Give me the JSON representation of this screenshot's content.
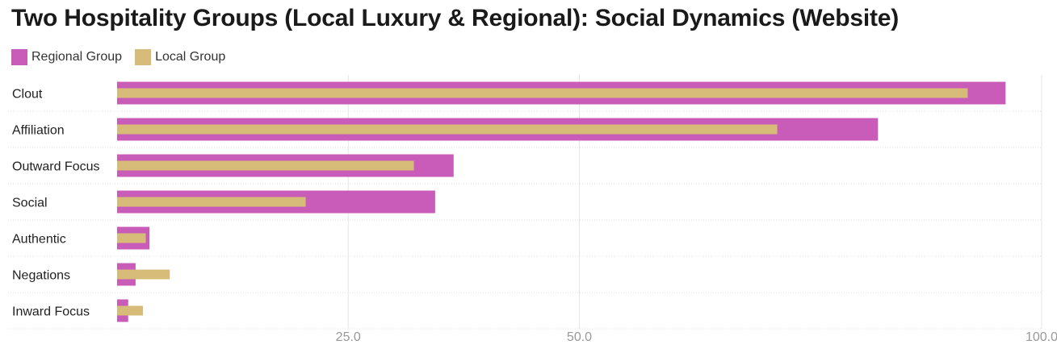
{
  "chart_data": {
    "type": "bar",
    "orientation": "horizontal",
    "title": "Two Hospitality Groups (Local Luxury & Regional): Social Dynamics (Website)",
    "categories": [
      "Clout",
      "Affiliation",
      "Outward Focus",
      "Social",
      "Authentic",
      "Negations",
      "Inward Focus"
    ],
    "series": [
      {
        "name": "Regional Group",
        "color": "#c85cb8",
        "values": [
          96.1,
          82.3,
          36.4,
          34.4,
          3.5,
          2.0,
          1.2
        ]
      },
      {
        "name": "Local Group",
        "color": "#d6bc78",
        "values": [
          92.0,
          71.4,
          32.1,
          20.4,
          3.1,
          5.7,
          2.8
        ]
      }
    ],
    "xlim": [
      0,
      100
    ],
    "xticks": [
      25,
      50,
      100
    ],
    "xtick_labels": [
      "25.0",
      "50.0",
      "100.0"
    ],
    "legend_position": "top-left",
    "grid": true,
    "xlabel": "",
    "ylabel": ""
  }
}
